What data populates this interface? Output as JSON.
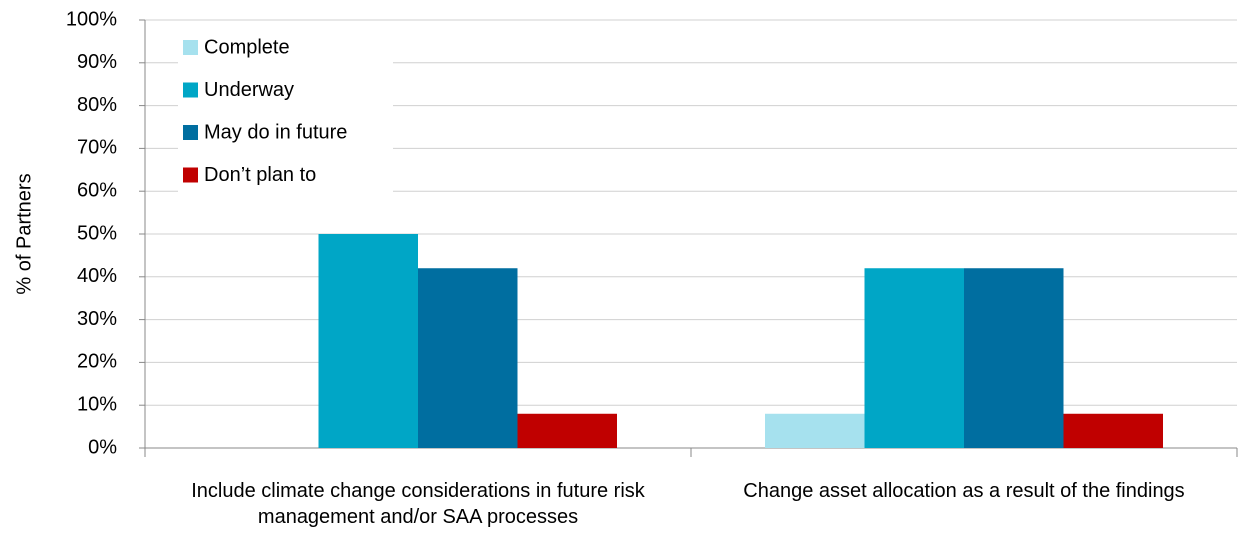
{
  "chart_data": {
    "type": "bar",
    "y_label": "% of Partners",
    "categories": [
      "Include climate change considerations in future risk management and/or SAA processes",
      "Change asset allocation as a result of the findings"
    ],
    "series": [
      {
        "name": "Complete",
        "color": "#a6e1ee",
        "values": [
          0,
          8
        ]
      },
      {
        "name": "Underway",
        "color": "#00a6c6",
        "values": [
          50,
          42
        ]
      },
      {
        "name": "May do in future",
        "color": "#006ea0",
        "values": [
          42,
          42
        ]
      },
      {
        "name": "Don’t plan to",
        "color": "#c00000",
        "values": [
          8,
          8
        ]
      }
    ],
    "ylim": [
      0,
      100
    ],
    "yticks": [
      {
        "value": 0,
        "label": "0%"
      },
      {
        "value": 10,
        "label": "10%"
      },
      {
        "value": 20,
        "label": "20%"
      },
      {
        "value": 30,
        "label": "30%"
      },
      {
        "value": 40,
        "label": "40%"
      },
      {
        "value": 50,
        "label": "50%"
      },
      {
        "value": 60,
        "label": "60%"
      },
      {
        "value": 70,
        "label": "70%"
      },
      {
        "value": 80,
        "label": "80%"
      },
      {
        "value": 90,
        "label": "90%"
      },
      {
        "value": 100,
        "label": "100%"
      }
    ],
    "grid": true,
    "legend": "top-left"
  }
}
